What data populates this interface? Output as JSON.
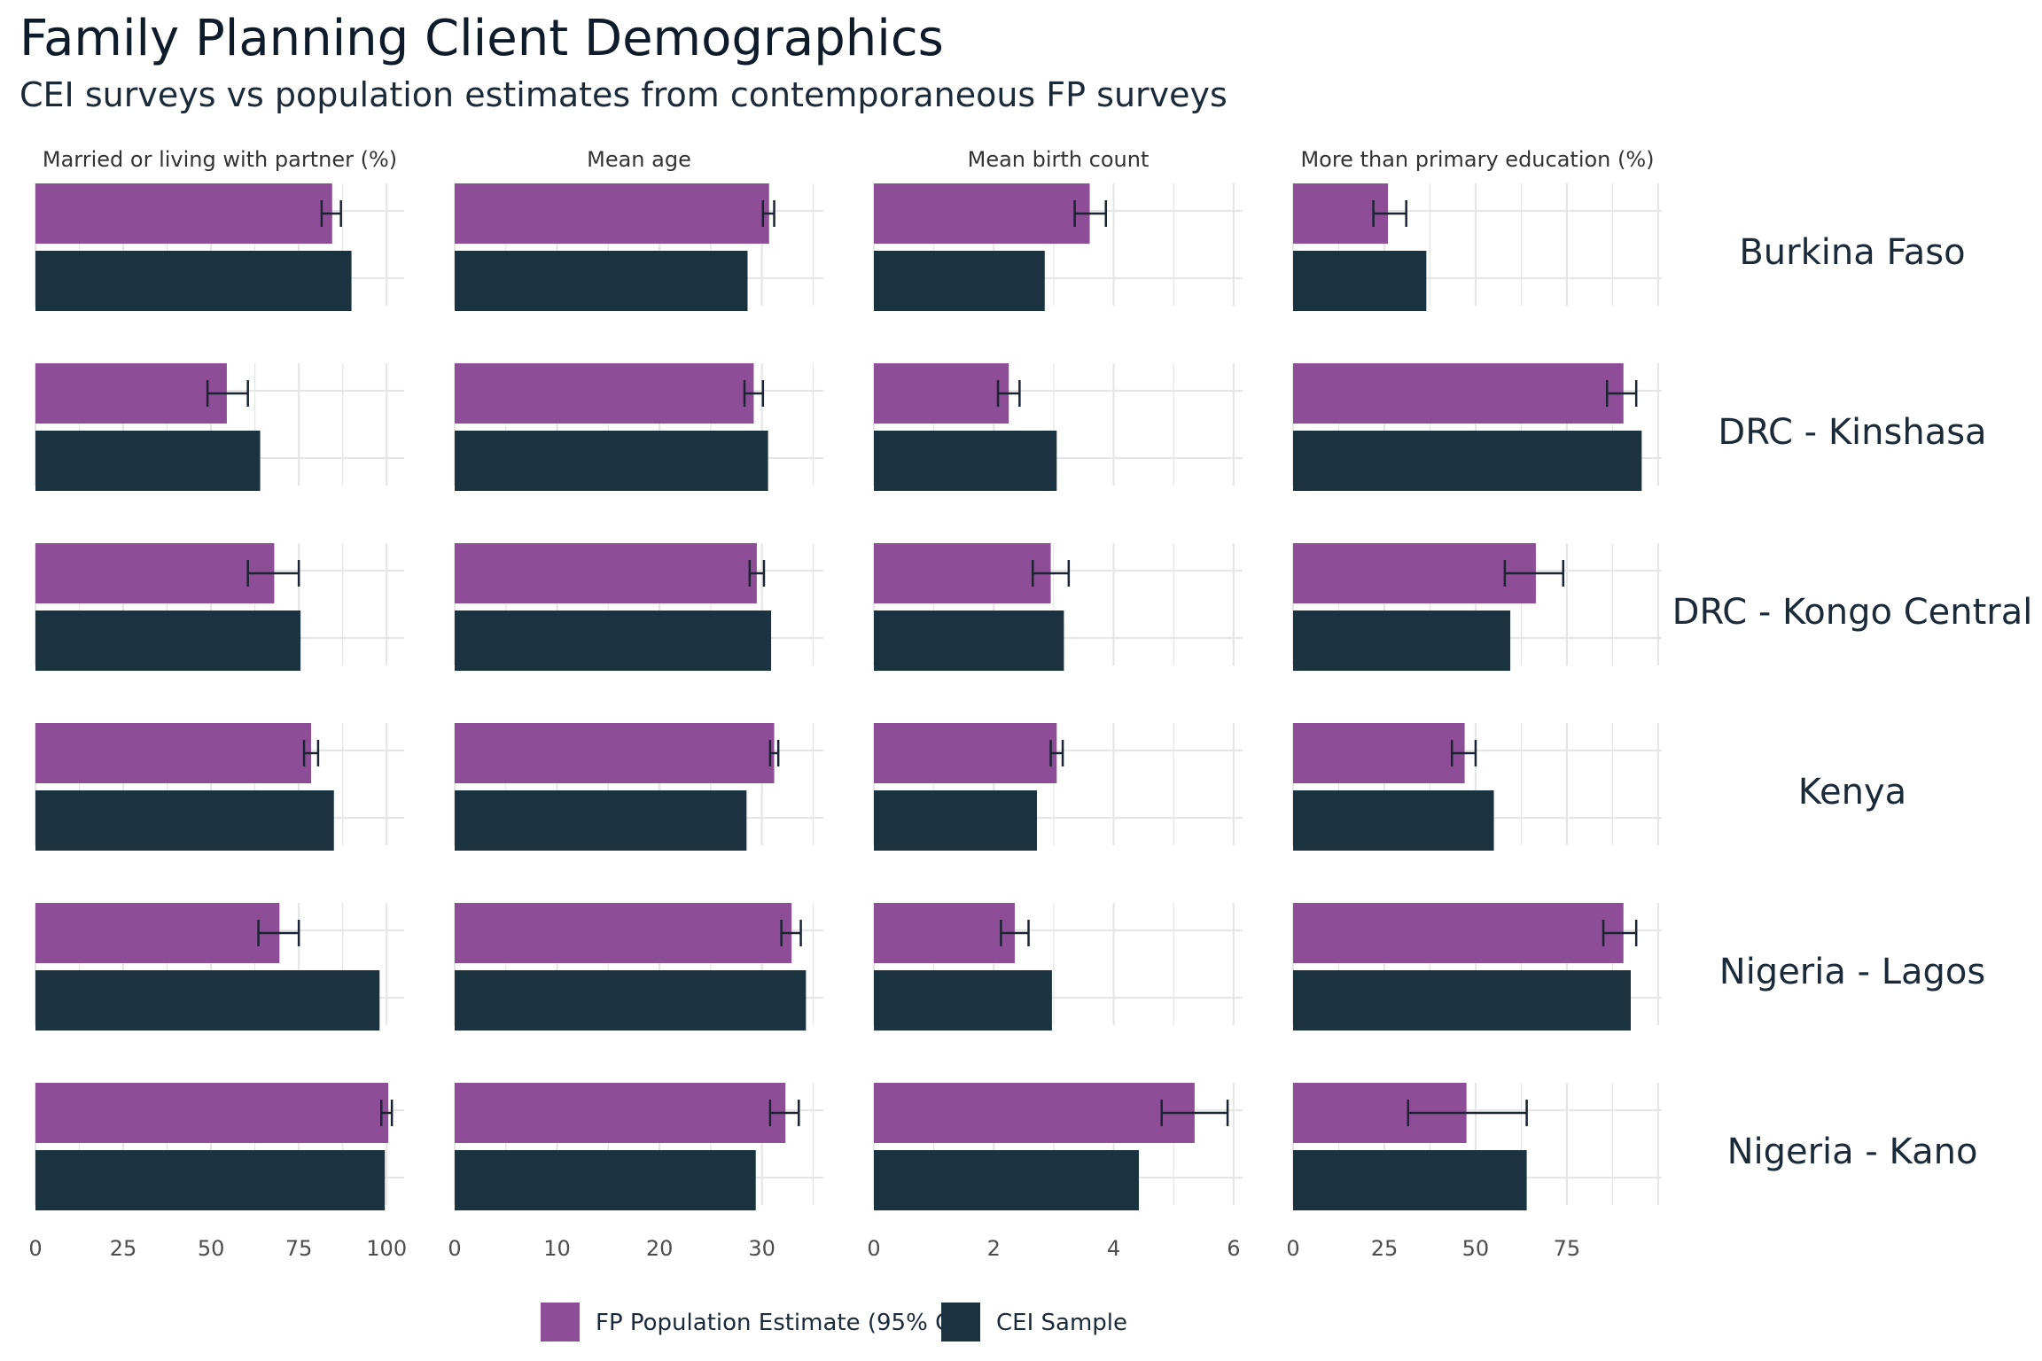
{
  "title": "Family Planning Client Demographics",
  "subtitle": "CEI surveys vs population estimates from contemporaneous FP surveys",
  "colors": {
    "fp": "#8e4e97",
    "cei": "#1b3341",
    "errorbar": "#1a2433",
    "grid": "#e6e6e6"
  },
  "legend": {
    "fp": "FP Population Estimate (95% CI)",
    "cei": "CEI Sample"
  },
  "chart_data": {
    "type": "bar",
    "orientation": "horizontal",
    "facets_rows": [
      "Burkina Faso",
      "DRC - Kinshasa",
      "DRC - Kongo Central",
      "Kenya",
      "Nigeria - Lagos",
      "Nigeria - Kano"
    ],
    "panels": [
      {
        "label": "Married or living with partner (%)",
        "xlim": [
          0,
          105
        ],
        "ticks": [
          0,
          25,
          50,
          75,
          100
        ],
        "fp": [
          84.5,
          54.5,
          68,
          78.5,
          69.5,
          100.5
        ],
        "fp_ci": [
          [
            81.5,
            87
          ],
          [
            49,
            60.5
          ],
          [
            60.5,
            75
          ],
          [
            76.5,
            80.5
          ],
          [
            63.5,
            75
          ],
          [
            98.5,
            101.5
          ]
        ],
        "cei": [
          90,
          64,
          75.5,
          85,
          98,
          99.5
        ]
      },
      {
        "label": "Mean age",
        "xlim": [
          0,
          36
        ],
        "ticks": [
          0,
          10,
          20,
          30
        ],
        "fp": [
          30.7,
          29.2,
          29.5,
          31.2,
          32.9,
          32.3
        ],
        "fp_ci": [
          [
            30.1,
            31.2
          ],
          [
            28.3,
            30.1
          ],
          [
            28.8,
            30.2
          ],
          [
            30.8,
            31.6
          ],
          [
            31.9,
            33.8
          ],
          [
            30.8,
            33.6
          ]
        ],
        "cei": [
          28.6,
          30.6,
          30.9,
          28.5,
          34.3,
          29.4
        ]
      },
      {
        "label": "Mean birth count",
        "xlim": [
          0,
          6.15
        ],
        "ticks": [
          0,
          2,
          4,
          6
        ],
        "fp": [
          3.6,
          2.25,
          2.95,
          3.05,
          2.35,
          5.35
        ],
        "fp_ci": [
          [
            3.35,
            3.87
          ],
          [
            2.07,
            2.43
          ],
          [
            2.65,
            3.25
          ],
          [
            2.95,
            3.15
          ],
          [
            2.12,
            2.58
          ],
          [
            4.8,
            5.9
          ]
        ],
        "cei": [
          2.85,
          3.05,
          3.17,
          2.72,
          2.97,
          4.42
        ]
      },
      {
        "label": "More than primary education (%)",
        "xlim": [
          0,
          101
        ],
        "ticks": [
          0,
          25,
          50,
          75
        ],
        "fp": [
          26,
          90.5,
          66.5,
          47,
          90.5,
          47.5
        ],
        "fp_ci": [
          [
            22,
            31
          ],
          [
            86,
            94
          ],
          [
            58,
            74
          ],
          [
            43.5,
            50
          ],
          [
            85,
            94
          ],
          [
            31.5,
            64
          ]
        ],
        "cei": [
          36.5,
          95.5,
          59.5,
          55,
          92.5,
          64
        ]
      }
    ]
  }
}
